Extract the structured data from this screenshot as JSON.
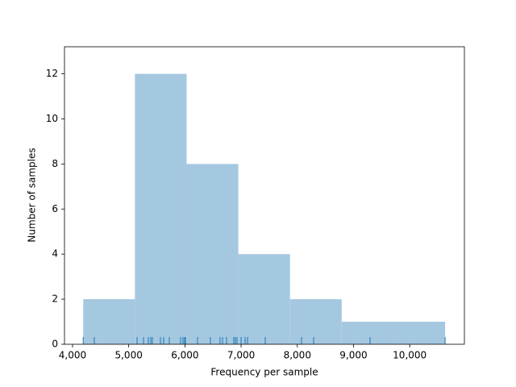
{
  "chart_data": {
    "type": "histogram",
    "xlabel": "Frequency per sample",
    "ylabel": "Number of samples",
    "bins": [
      4190,
      5110,
      6030,
      6950,
      7870,
      8790,
      9710,
      10630
    ],
    "values": [
      2,
      12,
      8,
      4,
      2,
      1,
      1
    ],
    "color": "#a5c8e1",
    "rug": [
      4190,
      4387,
      5148,
      5263,
      5349,
      5392,
      5420,
      5564,
      5621,
      5722,
      5923,
      5966,
      5994,
      6010,
      6224,
      6453,
      6625,
      6669,
      6740,
      6869,
      6898,
      6927,
      6999,
      7071,
      7114,
      7429,
      8075,
      8290,
      9294,
      10630
    ],
    "rug_color": "#1f77b4",
    "xlim": [
      3857,
      10973
    ],
    "ylim": [
      0,
      13.2
    ],
    "xticks": [
      {
        "value": 4000,
        "label": "4,000"
      },
      {
        "value": 5000,
        "label": "5,000"
      },
      {
        "value": 6000,
        "label": "6,000"
      },
      {
        "value": 7000,
        "label": "7,000"
      },
      {
        "value": 8000,
        "label": "8,000"
      },
      {
        "value": 9000,
        "label": "9,000"
      },
      {
        "value": 10000,
        "label": "10,000"
      }
    ],
    "yticks": [
      0,
      2,
      4,
      6,
      8,
      10,
      12
    ]
  }
}
